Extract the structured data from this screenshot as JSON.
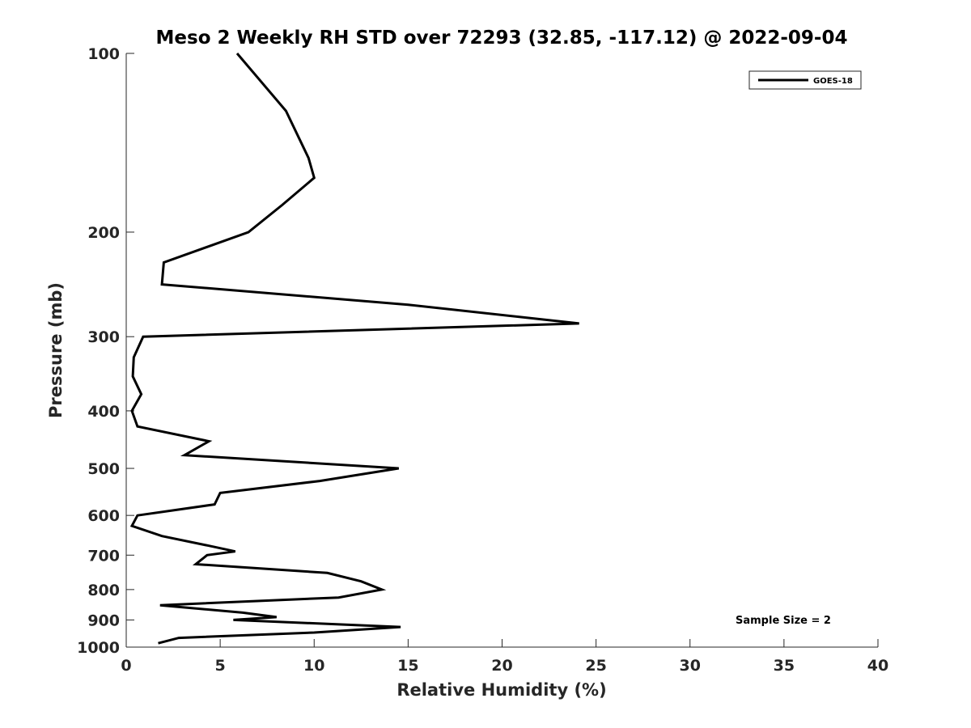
{
  "colors": {
    "background": "#ffffff",
    "axis": "#262626",
    "series_line": "#000000"
  },
  "chart_data": {
    "type": "line",
    "title": "Meso 2 Weekly RH STD over 72293 (32.85, -117.12) @ 2022-09-04",
    "xlabel": "Relative Humidity (%)",
    "ylabel": "Pressure (mb)",
    "xlim": [
      0,
      40
    ],
    "ylim": [
      100,
      1000
    ],
    "y_scale": "log",
    "y_reversed": true,
    "x_ticks": [
      0,
      5,
      10,
      15,
      20,
      25,
      30,
      35,
      40
    ],
    "x_tick_labels": [
      "0",
      "5",
      "10",
      "15",
      "20",
      "25",
      "30",
      "35",
      "40"
    ],
    "y_ticks": [
      100,
      200,
      300,
      400,
      500,
      600,
      700,
      800,
      900,
      1000
    ],
    "y_tick_labels": [
      "100",
      "200",
      "300",
      "400",
      "500",
      "600",
      "700",
      "800",
      "900",
      "1000"
    ],
    "grid": false,
    "legend_position": "top-right",
    "annotation": "Sample Size = 2",
    "series": [
      {
        "name": "GOES-18",
        "x": [
          5.9,
          8.5,
          9.7,
          10.0,
          8.3,
          6.5,
          2.0,
          1.9,
          15.0,
          24.1,
          0.9,
          0.4,
          0.35,
          0.8,
          0.3,
          0.6,
          4.4,
          3.1,
          14.5,
          10.3,
          5.0,
          4.7,
          0.6,
          0.3,
          1.9,
          4.4,
          5.8,
          4.3,
          3.7,
          10.7,
          12.5,
          13.6,
          11.3,
          1.8,
          6.2,
          8.0,
          5.7,
          14.6,
          10.0,
          2.8,
          1.7
        ],
        "y": [
          100,
          125,
          150,
          162,
          180,
          200,
          225,
          245,
          265,
          285,
          300,
          325,
          350,
          375,
          400,
          425,
          450,
          475,
          500,
          525,
          550,
          575,
          600,
          625,
          650,
          675,
          690,
          700,
          725,
          750,
          775,
          800,
          825,
          850,
          875,
          890,
          900,
          925,
          945,
          965,
          985
        ]
      }
    ]
  }
}
